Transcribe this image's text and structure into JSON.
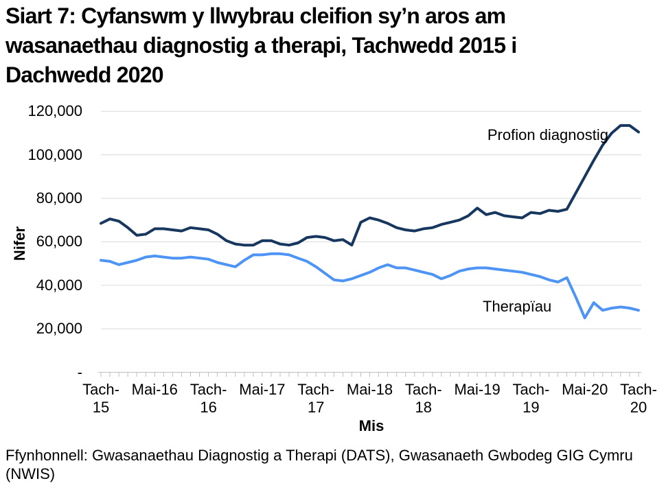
{
  "title": "Siart 7: Cyfanswm y llwybrau cleifion sy’n aros am wasanaethau diagnostig a therapi, Tachwedd 2015 i Dachwedd 2020",
  "source": "Ffynhonnell: Gwasanaethau Diagnostig a Therapi (DATS), Gwasanaeth Gwbodeg GIG Cymru\n(NWIS)",
  "colors": {
    "diagnostics_line": "#17375E",
    "therapies_line": "#4D94F5",
    "gridline": "#D9D9D9",
    "axis": "#BFBFBF",
    "text": "#000000",
    "background": "#FFFFFF"
  },
  "chart_data": {
    "type": "line",
    "title": "Siart 7: Cyfanswm y llwybrau cleifion sy’n aros am wasanaethau diagnostig a therapi, Tachwedd 2015 i Dachwedd 2020",
    "xlabel": "Mis",
    "ylabel": "Nifer",
    "ylim": [
      0,
      120000
    ],
    "grid": "horizontal",
    "legend": "inline-labels",
    "ytick_values": [
      0,
      20000,
      40000,
      60000,
      80000,
      100000,
      120000
    ],
    "ytick_labels": [
      "-",
      "20,000",
      "40,000",
      "60,000",
      "80,000",
      "100,000",
      "120,000"
    ],
    "xticks": [
      {
        "index": 0,
        "label": "Tach-\n15"
      },
      {
        "index": 6,
        "label": "Mai-16"
      },
      {
        "index": 12,
        "label": "Tach-\n16"
      },
      {
        "index": 18,
        "label": "Mai-17"
      },
      {
        "index": 24,
        "label": "Tach-\n17"
      },
      {
        "index": 30,
        "label": "Mai-18"
      },
      {
        "index": 36,
        "label": "Tach-\n18"
      },
      {
        "index": 42,
        "label": "Mai-19"
      },
      {
        "index": 48,
        "label": "Tach-\n19"
      },
      {
        "index": 54,
        "label": "Mai-20"
      },
      {
        "index": 60,
        "label": "Tach-\n20"
      }
    ],
    "x": [
      "2015-11",
      "2015-12",
      "2016-01",
      "2016-02",
      "2016-03",
      "2016-04",
      "2016-05",
      "2016-06",
      "2016-07",
      "2016-08",
      "2016-09",
      "2016-10",
      "2016-11",
      "2016-12",
      "2017-01",
      "2017-02",
      "2017-03",
      "2017-04",
      "2017-05",
      "2017-06",
      "2017-07",
      "2017-08",
      "2017-09",
      "2017-10",
      "2017-11",
      "2017-12",
      "2018-01",
      "2018-02",
      "2018-03",
      "2018-04",
      "2018-05",
      "2018-06",
      "2018-07",
      "2018-08",
      "2018-09",
      "2018-10",
      "2018-11",
      "2018-12",
      "2019-01",
      "2019-02",
      "2019-03",
      "2019-04",
      "2019-05",
      "2019-06",
      "2019-07",
      "2019-08",
      "2019-09",
      "2019-10",
      "2019-11",
      "2019-12",
      "2020-01",
      "2020-02",
      "2020-03",
      "2020-04",
      "2020-05",
      "2020-06",
      "2020-07",
      "2020-08",
      "2020-09",
      "2020-10",
      "2020-11"
    ],
    "series": [
      {
        "id": "diagnostics",
        "name": "Profion diagnostig",
        "color": "#17375E",
        "values": [
          68500,
          70500,
          69500,
          66500,
          63000,
          63500,
          66000,
          66000,
          65500,
          65000,
          66500,
          66000,
          65500,
          63500,
          60500,
          59000,
          58500,
          58500,
          60500,
          60500,
          59000,
          58500,
          59500,
          62000,
          62500,
          62000,
          60500,
          61000,
          58500,
          69000,
          71000,
          70000,
          68500,
          66500,
          65500,
          65000,
          66000,
          66500,
          68000,
          69000,
          70000,
          72000,
          75500,
          72500,
          73500,
          72000,
          71500,
          71000,
          73500,
          73000,
          74500,
          74000,
          75000,
          82500,
          90000,
          97500,
          104500,
          110000,
          113500,
          113500,
          110500
        ]
      },
      {
        "id": "therapies",
        "name": "Therapïau",
        "color": "#4D94F5",
        "values": [
          51500,
          51000,
          49500,
          50500,
          51500,
          53000,
          53500,
          53000,
          52500,
          52500,
          53000,
          52500,
          52000,
          50500,
          49500,
          48500,
          51500,
          54000,
          54000,
          54500,
          54500,
          54000,
          52500,
          51000,
          48500,
          45500,
          42500,
          42000,
          43000,
          44500,
          46000,
          48000,
          49500,
          48000,
          48000,
          47000,
          46000,
          45000,
          43000,
          44500,
          46500,
          47500,
          48000,
          48000,
          47500,
          47000,
          46500,
          46000,
          45000,
          44000,
          42500,
          41500,
          43500,
          34500,
          25000,
          32000,
          28500,
          29500,
          30000,
          29500,
          28500
        ]
      }
    ]
  }
}
